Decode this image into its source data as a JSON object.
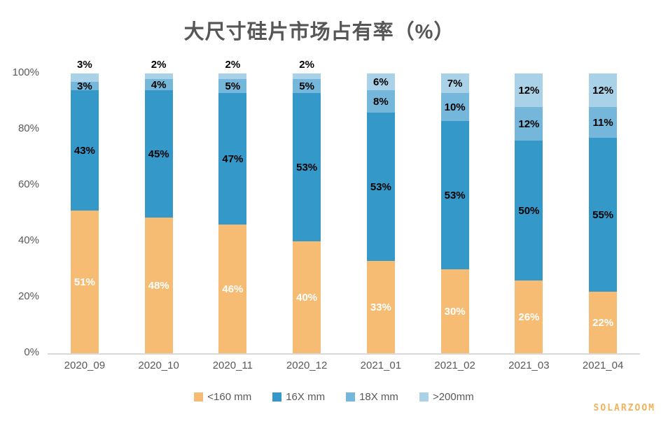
{
  "title": "大尺寸硅片市场占有率（%）",
  "watermark": "SOLARZOOM",
  "colors": {
    "title_text": "#565656",
    "tick_text": "#595959",
    "axis_line": "#d9d9d9",
    "watermark_text": "#f2b25c"
  },
  "chart_data": {
    "type": "bar",
    "stacked": true,
    "stacked_100_percent": true,
    "title": "大尺寸硅片市场占有率（%）",
    "xlabel": "",
    "ylabel": "",
    "ylim": [
      0,
      100
    ],
    "yticks": [
      {
        "value": 0,
        "label": "0%"
      },
      {
        "value": 20,
        "label": "20%"
      },
      {
        "value": 40,
        "label": "40%"
      },
      {
        "value": 60,
        "label": "60%"
      },
      {
        "value": 80,
        "label": "80%"
      },
      {
        "value": 100,
        "label": "100%"
      }
    ],
    "grid": false,
    "legend_position": "bottom",
    "categories": [
      "2020_09",
      "2020_10",
      "2020_11",
      "2020_12",
      "2021_01",
      "2021_02",
      "2021_03",
      "2021_04"
    ],
    "series": [
      {
        "name": "<160 mm",
        "color": "#f6bc74",
        "label_color": "#ffffff",
        "values": [
          51,
          48,
          46,
          40,
          33,
          30,
          26,
          22
        ]
      },
      {
        "name": "16X mm",
        "color": "#3498c8",
        "label_color": "#000000",
        "values": [
          43,
          45,
          47,
          53,
          53,
          53,
          50,
          55
        ]
      },
      {
        "name": "18X mm",
        "color": "#74b7da",
        "label_color": "#000000",
        "values": [
          3,
          4,
          5,
          5,
          8,
          10,
          12,
          11
        ]
      },
      {
        "name": ">200mm",
        "color": "#a9d2e9",
        "label_color": "#000000",
        "values": [
          3,
          2,
          2,
          2,
          6,
          7,
          12,
          12
        ]
      }
    ],
    "label_format": "percent",
    "small_top_segment_label_above_threshold": 3
  }
}
